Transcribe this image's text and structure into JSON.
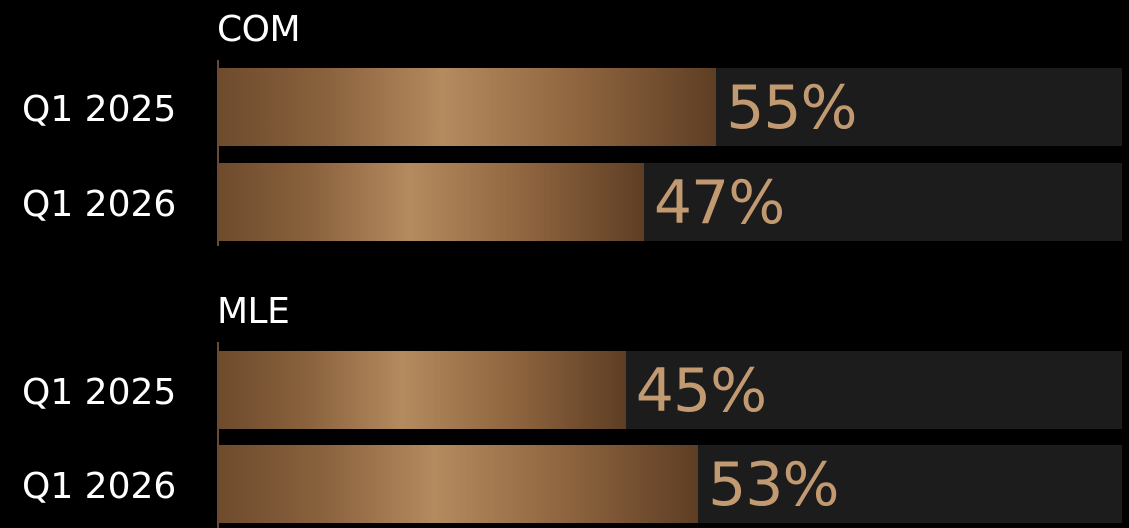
{
  "chart_data": {
    "type": "bar",
    "orientation": "horizontal",
    "xlim": [
      0,
      100
    ],
    "groups": [
      {
        "title": "COM",
        "rows": [
          {
            "label": "Q1 2025",
            "value": 55,
            "value_label": "55%"
          },
          {
            "label": "Q1 2026",
            "value": 47,
            "value_label": "47%"
          }
        ]
      },
      {
        "title": "MLE",
        "rows": [
          {
            "label": "Q1 2025",
            "value": 45,
            "value_label": "45%"
          },
          {
            "label": "Q1 2026",
            "value": 53,
            "value_label": "53%"
          }
        ]
      }
    ],
    "colors": {
      "bar_fill": "#b48a5f",
      "track": "#1c1c1c",
      "value_text": "#c29a72",
      "background": "#000000"
    }
  }
}
